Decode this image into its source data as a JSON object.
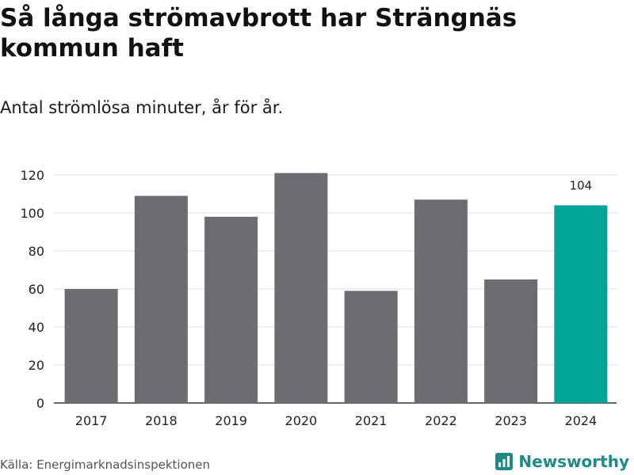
{
  "title": "Så långa strömavbrott har Strängnäs kommun haft",
  "subtitle": "Antal strömlösa minuter, år för år.",
  "source": "Källa: Energimarknadsinspektionen",
  "brand": {
    "name": "Newsworthy",
    "icon": "newsworthy-logo-icon",
    "color": "#1f8a85"
  },
  "colors": {
    "bar": "#6d6c71",
    "highlight": "#00a398",
    "grid": "#dddddd",
    "axis": "#333333"
  },
  "chart_data": {
    "type": "bar",
    "title": "Så långa strömavbrott har Strängnäs kommun haft",
    "subtitle": "Antal strömlösa minuter, år för år.",
    "xlabel": "",
    "ylabel": "",
    "categories": [
      "2017",
      "2018",
      "2019",
      "2020",
      "2021",
      "2022",
      "2023",
      "2024"
    ],
    "values": [
      60,
      109,
      98,
      121,
      59,
      107,
      65,
      104
    ],
    "ylim": [
      0,
      120
    ],
    "yticks": [
      "0",
      "20",
      "40",
      "60",
      "80",
      "100",
      "120"
    ],
    "grid": true,
    "highlight_category": "2024",
    "data_labels": [
      {
        "category": "2024",
        "label": "104"
      }
    ]
  }
}
